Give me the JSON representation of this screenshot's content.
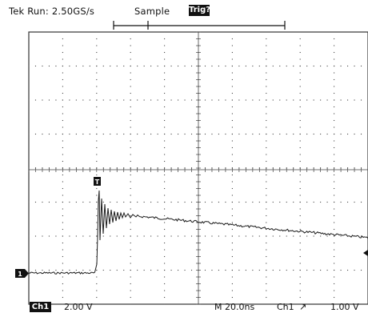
{
  "header": {
    "acquisition": "Tek Run: 2.50GS/s",
    "mode": "Sample",
    "trigger_status": "Trig?"
  },
  "channel": {
    "marker": "1",
    "trigger_marker": "T",
    "readout_label": "Ch1",
    "volts_per_div": "2.00 V"
  },
  "horizontal": {
    "timebase": "M 20.0ns",
    "trigger_source": "Ch1",
    "trigger_slope_symbol": "↗",
    "trigger_level": "1.00 V"
  },
  "colors": {
    "trace": "#1a1a1a",
    "grid": "#333333",
    "background": "#ffffff"
  }
}
